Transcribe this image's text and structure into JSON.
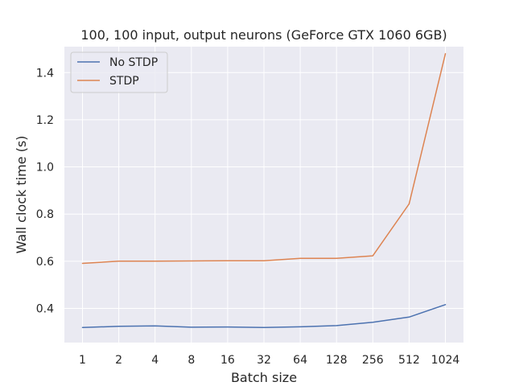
{
  "chart_data": {
    "type": "line",
    "title": "100, 100 input, output neurons (GeForce GTX 1060 6GB)",
    "xlabel": "Batch size",
    "ylabel": "Wall clock time (s)",
    "categories": [
      "1",
      "2",
      "4",
      "8",
      "16",
      "32",
      "64",
      "128",
      "256",
      "512",
      "1024"
    ],
    "ylim": [
      0.255,
      1.51
    ],
    "yticks": [
      "0.4",
      "0.6",
      "0.8",
      "1.0",
      "1.2",
      "1.4"
    ],
    "ytick_values": [
      0.4,
      0.6,
      0.8,
      1.0,
      1.2,
      1.4
    ],
    "grid": true,
    "legend_position": "top-left",
    "background": "#eaeaf2",
    "series": [
      {
        "name": "No STDP",
        "color": "#4c72b0",
        "values": [
          0.319,
          0.324,
          0.326,
          0.32,
          0.321,
          0.319,
          0.322,
          0.327,
          0.341,
          0.363,
          0.416
        ]
      },
      {
        "name": "STDP",
        "color": "#dd8452",
        "values": [
          0.591,
          0.6,
          0.6,
          0.601,
          0.602,
          0.602,
          0.612,
          0.612,
          0.623,
          0.843,
          1.48
        ]
      }
    ]
  }
}
